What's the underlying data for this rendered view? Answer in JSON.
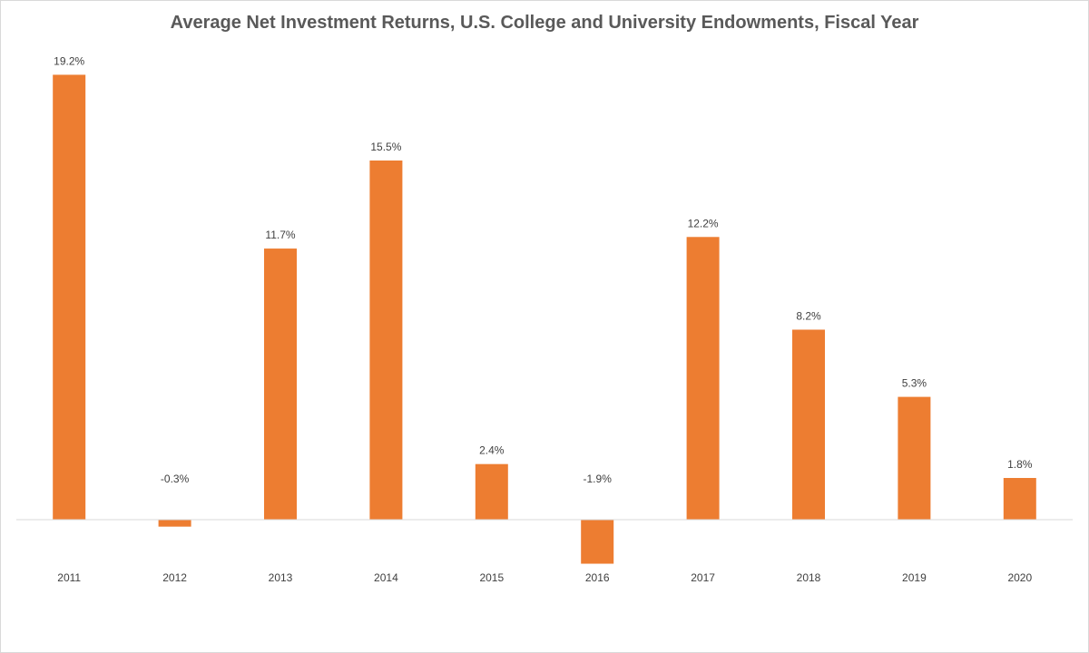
{
  "chart_data": {
    "type": "bar",
    "title": "Average Net Investment Returns, U.S. College and University Endowments, Fiscal Year",
    "xlabel": "",
    "ylabel": "",
    "categories": [
      "2011",
      "2012",
      "2013",
      "2014",
      "2015",
      "2016",
      "2017",
      "2018",
      "2019",
      "2020"
    ],
    "values": [
      19.2,
      -0.3,
      11.7,
      15.5,
      2.4,
      -1.9,
      12.2,
      8.2,
      5.3,
      1.8
    ],
    "data_labels": [
      "19.2%",
      "-0.3%",
      "11.7%",
      "15.5%",
      "2.4%",
      "-1.9%",
      "12.2%",
      "8.2%",
      "5.3%",
      "1.8%"
    ],
    "ylim": [
      -2.2,
      19.8
    ],
    "grid": false,
    "legend": "none",
    "bar_color": "#ED7D31",
    "axis_line_color": "#D9D9D9"
  }
}
